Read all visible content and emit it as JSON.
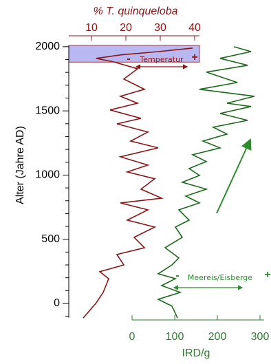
{
  "chart_data": {
    "type": "line",
    "ylabel": "Alter (Jahre AD)",
    "ylim": [
      -110,
      2010
    ],
    "yticks": [
      0,
      500,
      1000,
      1500,
      2000
    ],
    "yminorticks": [
      -100,
      100,
      200,
      300,
      400,
      600,
      700,
      800,
      900,
      1100,
      1200,
      1300,
      1400,
      1600,
      1700,
      1800,
      1900
    ],
    "x2label": "% T. quinqueloba",
    "x2lim": [
      3.4,
      41.4
    ],
    "x2ticks": [
      10,
      20,
      30,
      40
    ],
    "x2color": "#8b1414",
    "xlabel": "IRD/g",
    "xlim": [
      0,
      310
    ],
    "xticks": [
      0,
      100,
      200,
      300
    ],
    "xcolor": "#2e7d2e",
    "shaded_range": [
      1880,
      2010
    ],
    "shaded_color": "#b8b8f2",
    "series": [
      {
        "axis": "x2",
        "color": "#8b1414",
        "values": [
          7.6,
          11.4,
          13.4,
          15,
          12.4,
          19.4,
          17.4,
          25.4,
          22.4,
          28.4,
          20.4,
          26.4,
          18.4,
          30.4,
          24.4,
          28.4,
          20.4,
          26.4,
          18.4,
          29.4,
          21.4,
          26.4,
          17.4,
          24.4,
          15.4,
          23.4,
          18.4,
          25.4,
          19.4,
          23.4,
          16.4,
          11.4,
          18.4,
          29.4,
          39.4
        ],
        "y": [
          -113,
          5,
          86,
          193,
          247,
          300,
          381,
          434,
          515,
          595,
          649,
          729,
          783,
          820,
          890,
          971,
          1024,
          1078,
          1142,
          1212,
          1265,
          1335,
          1399,
          1442,
          1507,
          1560,
          1614,
          1668,
          1748,
          1828,
          1882,
          1909,
          1936,
          1962,
          1989
        ]
      },
      {
        "axis": "x",
        "color": "#1a6b1a",
        "values": [
          106.5,
          93.5,
          61.3,
          112.9,
          69.4,
          101.6,
          61.3,
          93.5,
          109.7,
          77.4,
          117.7,
          101.6,
          133.9,
          109.7,
          158.1,
          125.8,
          174.2,
          117.7,
          158.1,
          133.9,
          174.2,
          141.9,
          206.5,
          166.1,
          222.6,
          190.3,
          271,
          206.5,
          279,
          222.6,
          287.1,
          158.1,
          246.8,
          174.2,
          271,
          206.5,
          279,
          238.7
        ],
        "y": [
          -113,
          -21,
          32,
          86,
          139,
          193,
          231,
          300,
          354,
          434,
          515,
          595,
          649,
          729,
          783,
          836,
          890,
          944,
          997,
          1051,
          1105,
          1158,
          1212,
          1265,
          1319,
          1373,
          1426,
          1480,
          1534,
          1560,
          1614,
          1668,
          1721,
          1802,
          1855,
          1909,
          1962,
          2000
        ]
      }
    ],
    "annotations": [
      {
        "text": "Temperatur",
        "low": "-",
        "high": "+",
        "color": "#8b1414"
      },
      {
        "text": "Meereis/Eisberge",
        "low": "-",
        "high": "+",
        "color": "#2e8b2e"
      }
    ]
  }
}
